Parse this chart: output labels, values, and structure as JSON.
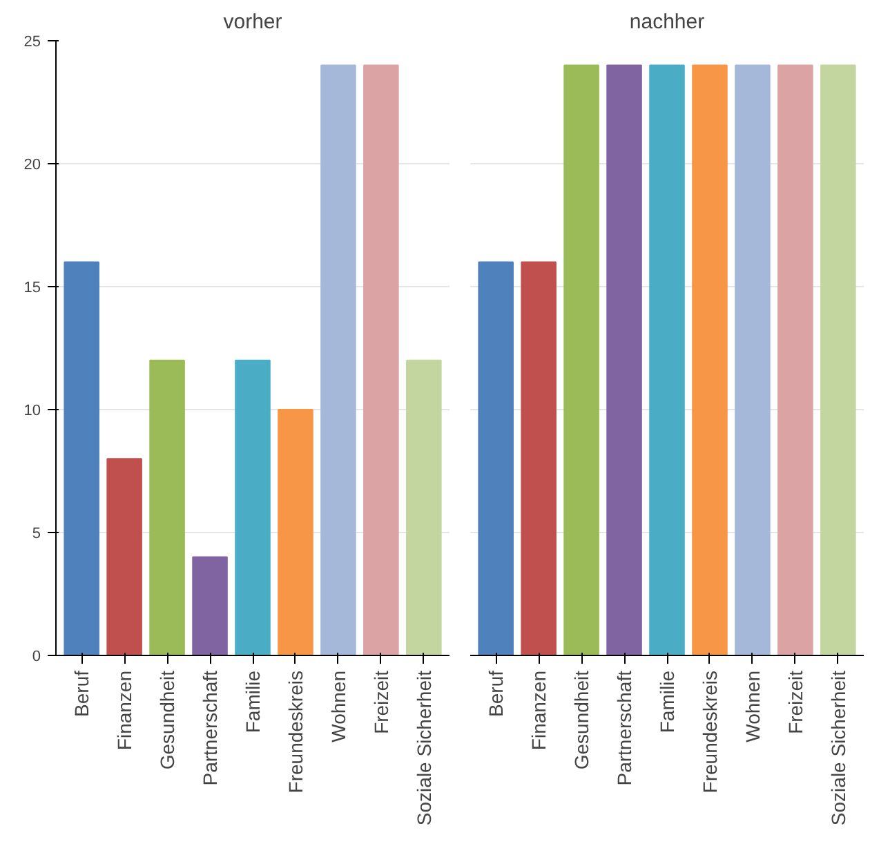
{
  "chart_data": [
    {
      "type": "bar",
      "title": "vorher",
      "categories": [
        "Beruf",
        "Finanzen",
        "Gesundheit",
        "Partnerschaft",
        "Familie",
        "Freundeskreis",
        "Wohnen",
        "Freizeit",
        "Soziale Sicherheit"
      ],
      "values": [
        16,
        8,
        12,
        4,
        12,
        10,
        24,
        24,
        12
      ],
      "colors": [
        "#4f81bd",
        "#c0504d",
        "#9bbb59",
        "#8064a2",
        "#4bacc6",
        "#f79646",
        "#a5b8da",
        "#dba3a3",
        "#c4d6a0"
      ],
      "ylim": [
        0,
        25
      ],
      "yticks": [
        0,
        5,
        10,
        15,
        20,
        25
      ],
      "grid": "y"
    },
    {
      "type": "bar",
      "title": "nachher",
      "categories": [
        "Beruf",
        "Finanzen",
        "Gesundheit",
        "Partnerschaft",
        "Familie",
        "Freundeskreis",
        "Wohnen",
        "Freizeit",
        "Soziale Sicherheit"
      ],
      "values": [
        16,
        16,
        24,
        24,
        24,
        24,
        24,
        24,
        24
      ],
      "colors": [
        "#4f81bd",
        "#c0504d",
        "#9bbb59",
        "#8064a2",
        "#4bacc6",
        "#f79646",
        "#a5b8da",
        "#dba3a3",
        "#c4d6a0"
      ],
      "ylim": [
        0,
        25
      ],
      "yticks": [
        0,
        5,
        10,
        15,
        20,
        25
      ],
      "grid": "y",
      "tick_labels": "x"
    }
  ]
}
